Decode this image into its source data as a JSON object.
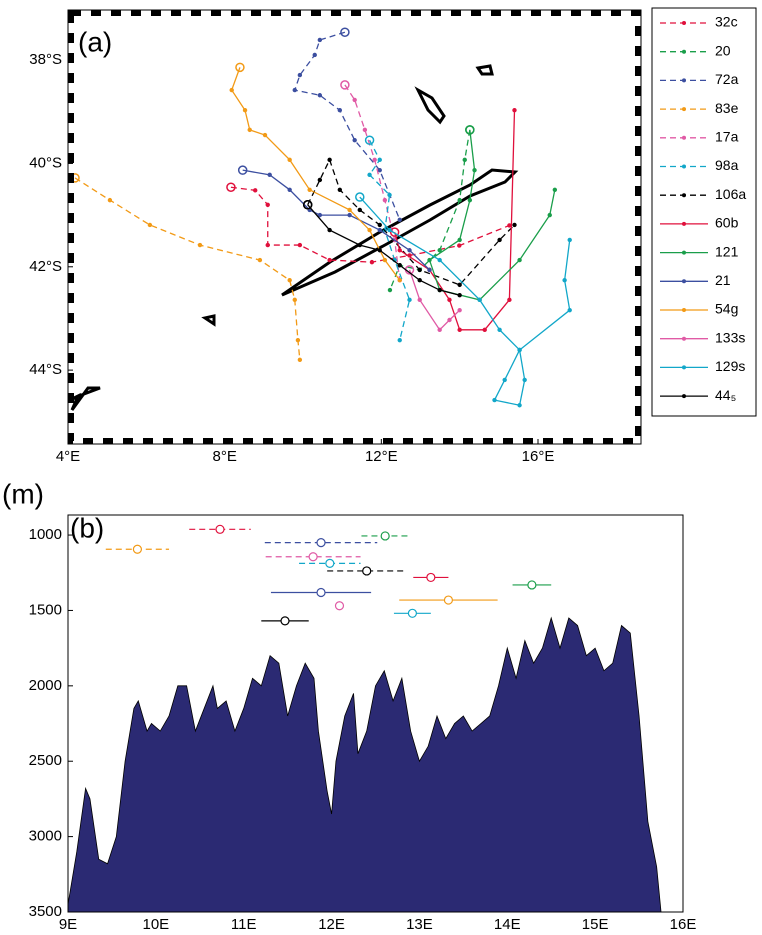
{
  "chart_data": [
    {
      "type": "line",
      "panel_label": "(a)",
      "xlim": [
        4,
        18.63
      ],
      "ylim": [
        -45.43,
        -37.03
      ],
      "xticks": [
        {
          "value": 4,
          "label": "4°E"
        },
        {
          "value": 8,
          "label": "8°E"
        },
        {
          "value": 12,
          "label": "12°E"
        },
        {
          "value": 16,
          "label": "16°E"
        }
      ],
      "yticks": [
        {
          "value": -38,
          "label": "38°S"
        },
        {
          "value": -40,
          "label": "40°S"
        },
        {
          "value": -42,
          "label": "42°S"
        },
        {
          "value": -44,
          "label": "44°S"
        }
      ],
      "series": [
        {
          "name": "32c",
          "color": "#e0103c",
          "dashed": true,
          "x": [
            8.16,
            8.78,
            9.1,
            9.1,
            9.92,
            10.68,
            11.76,
            12.72,
            13.99,
            15.27
          ],
          "values": [
            -40.46,
            -40.52,
            -40.8,
            -41.58,
            -41.58,
            -41.87,
            -41.91,
            -41.78,
            -41.59,
            -41.2
          ]
        },
        {
          "name": "20",
          "color": "#1a9e4a",
          "dashed": true,
          "x": [
            14.26,
            14.13,
            14.0,
            13.49,
            12.98,
            12.47,
            12.22
          ],
          "values": [
            -39.35,
            -39.93,
            -40.71,
            -41.68,
            -42.06,
            -41.97,
            -42.45
          ]
        },
        {
          "name": "72a",
          "color": "#3c4fa0",
          "dashed": true,
          "x": [
            11.07,
            10.43,
            10.3,
            9.92,
            9.79,
            10.43,
            10.94,
            11.32,
            11.96,
            12.47
          ],
          "values": [
            -37.46,
            -37.61,
            -37.9,
            -38.29,
            -38.58,
            -38.68,
            -38.97,
            -39.55,
            -40.13,
            -41.09
          ]
        },
        {
          "name": "83e",
          "color": "#f29a16",
          "dashed": true,
          "x": [
            4.18,
            5.07,
            6.09,
            7.37,
            8.9,
            9.66,
            9.79,
            9.87,
            9.92
          ],
          "values": [
            -40.28,
            -40.71,
            -41.19,
            -41.58,
            -41.87,
            -42.26,
            -42.64,
            -43.42,
            -43.8
          ]
        },
        {
          "name": "17a",
          "color": "#e05aa5",
          "dashed": true,
          "x": [
            11.07,
            11.32,
            11.58,
            11.83,
            12.09,
            12.34,
            12.47
          ],
          "values": [
            -38.48,
            -38.77,
            -39.35,
            -39.93,
            -40.71,
            -41.48,
            -42.26
          ]
        },
        {
          "name": "98a",
          "color": "#12a7c9",
          "dashed": true,
          "x": [
            11.7,
            11.96,
            11.7,
            12.21,
            12.09,
            12.34,
            12.72,
            12.47
          ],
          "values": [
            -39.55,
            -39.93,
            -40.22,
            -40.61,
            -41.29,
            -41.87,
            -42.64,
            -43.42
          ]
        },
        {
          "name": "106a",
          "color": "#000000",
          "dashed": true,
          "x": [
            10.12,
            10.43,
            10.68,
            10.94,
            11.45,
            11.96,
            12.98,
            14.0,
            15.02,
            15.4
          ],
          "values": [
            -40.8,
            -40.32,
            -39.93,
            -40.51,
            -40.9,
            -41.19,
            -42.06,
            -42.35,
            -41.48,
            -41.19
          ]
        },
        {
          "name": "60b",
          "color": "#e0103c",
          "dashed": false,
          "x": [
            12.34,
            12.47,
            13.23,
            13.74,
            14.0,
            14.64,
            15.27,
            15.4
          ],
          "values": [
            -41.33,
            -41.68,
            -42.06,
            -42.64,
            -43.22,
            -43.22,
            -42.64,
            -38.97
          ]
        },
        {
          "name": "121",
          "color": "#1a9e4a",
          "dashed": false,
          "x": [
            14.26,
            14.38,
            14.26,
            14.0,
            13.23,
            13.49,
            14.51,
            15.53,
            16.3,
            16.43
          ],
          "values": [
            -39.35,
            -40.13,
            -40.71,
            -41.48,
            -41.87,
            -42.45,
            -42.64,
            -41.87,
            -41.0,
            -40.51
          ]
        },
        {
          "name": "21",
          "color": "#3c4fa0",
          "dashed": false,
          "x": [
            8.46,
            9.15,
            9.66,
            10.17,
            10.43,
            11.19,
            11.96,
            12.72,
            13.23
          ],
          "values": [
            -40.13,
            -40.22,
            -40.51,
            -40.9,
            -41.0,
            -41.0,
            -41.29,
            -41.68,
            -42.06
          ]
        },
        {
          "name": "54g",
          "color": "#f29a16",
          "dashed": false,
          "x": [
            8.39,
            8.18,
            8.52,
            8.64,
            9.03,
            9.66,
            10.17,
            11.19,
            11.7,
            12.09,
            12.47
          ],
          "values": [
            -38.14,
            -38.58,
            -38.97,
            -39.35,
            -39.45,
            -39.93,
            -40.51,
            -40.9,
            -41.29,
            -41.87,
            -42.26
          ]
        },
        {
          "name": "133s",
          "color": "#e05aa5",
          "dashed": false,
          "x": [
            12.72,
            12.98,
            13.49,
            13.74,
            14.0
          ],
          "values": [
            -42.06,
            -42.64,
            -43.22,
            -43.03,
            -42.84
          ]
        },
        {
          "name": "129s",
          "color": "#12a7c9",
          "dashed": false,
          "x": [
            11.45,
            12.21,
            13.49,
            14.51,
            15.02,
            15.53,
            15.15,
            14.89,
            15.53,
            15.66,
            15.53,
            16.81,
            16.68,
            16.81
          ],
          "values": [
            -40.65,
            -41.29,
            -41.87,
            -42.64,
            -43.22,
            -43.61,
            -44.19,
            -44.58,
            -44.68,
            -44.19,
            -43.61,
            -42.84,
            -42.26,
            -41.48
          ]
        },
        {
          "name": "44₅",
          "color": "#000000",
          "dashed": false,
          "x": [
            10.12,
            10.68,
            11.45,
            11.96,
            12.47,
            12.98,
            13.49,
            14.0
          ],
          "values": [
            -40.8,
            -41.29,
            -41.58,
            -41.68,
            -41.97,
            -42.26,
            -42.45,
            -42.55
          ]
        }
      ]
    },
    {
      "type": "area",
      "panel_label": "(b)",
      "unit_label": "(m)",
      "xlim": [
        9,
        16
      ],
      "ylim": [
        3500,
        867
      ],
      "xticks": [
        {
          "value": 9,
          "label": "9E"
        },
        {
          "value": 10,
          "label": "10E"
        },
        {
          "value": 11,
          "label": "11E"
        },
        {
          "value": 12,
          "label": "12E"
        },
        {
          "value": 13,
          "label": "13E"
        },
        {
          "value": 14,
          "label": "14E"
        },
        {
          "value": 15,
          "label": "15E"
        },
        {
          "value": 16,
          "label": "16E"
        }
      ],
      "yticks": [
        1000,
        1500,
        2000,
        2500,
        3000,
        3500
      ],
      "area": {
        "color": "#2b2a73",
        "x": [
          9.0,
          9.1,
          9.2,
          9.25,
          9.35,
          9.45,
          9.55,
          9.65,
          9.75,
          9.8,
          9.85,
          9.9,
          9.95,
          10.05,
          10.15,
          10.25,
          10.35,
          10.45,
          10.55,
          10.65,
          10.7,
          10.8,
          10.9,
          11.0,
          11.1,
          11.2,
          11.3,
          11.4,
          11.5,
          11.6,
          11.7,
          11.8,
          11.85,
          11.95,
          12.0,
          12.05,
          12.15,
          12.25,
          12.3,
          12.4,
          12.5,
          12.6,
          12.7,
          12.8,
          12.9,
          13.0,
          13.1,
          13.2,
          13.3,
          13.4,
          13.5,
          13.6,
          13.7,
          13.8,
          13.9,
          14.0,
          14.1,
          14.2,
          14.3,
          14.4,
          14.5,
          14.6,
          14.7,
          14.8,
          14.9,
          15.0,
          15.1,
          15.2,
          15.3,
          15.4,
          15.5,
          15.6,
          15.7,
          15.75
        ],
        "values": [
          3450,
          3100,
          2680,
          2750,
          3150,
          3180,
          3000,
          2500,
          2150,
          2100,
          2200,
          2300,
          2250,
          2300,
          2200,
          2000,
          2000,
          2300,
          2150,
          2000,
          2150,
          2100,
          2300,
          2150,
          1950,
          2000,
          1800,
          1850,
          2200,
          2000,
          1850,
          1950,
          2300,
          2700,
          2850,
          2500,
          2200,
          2050,
          2450,
          2300,
          2000,
          1900,
          2100,
          1950,
          2300,
          2500,
          2400,
          2200,
          2350,
          2250,
          2200,
          2300,
          2250,
          2200,
          2000,
          1750,
          1950,
          1700,
          1850,
          1750,
          1550,
          1750,
          1550,
          1600,
          1800,
          1750,
          1900,
          1850,
          1600,
          1650,
          2200,
          2900,
          3200,
          3500
        ]
      },
      "series": [
        {
          "color": "#e0103c",
          "dashed": true,
          "x": [
            10.73
          ],
          "values": [
            962
          ],
          "xerr": [
            0.35
          ]
        },
        {
          "color": "#1a9e4a",
          "dashed": true,
          "x": [
            12.61
          ],
          "values": [
            1006
          ],
          "xerr": [
            0.27
          ]
        },
        {
          "color": "#3c4fa0",
          "dashed": true,
          "x": [
            11.88
          ],
          "values": [
            1050
          ],
          "xerr": [
            0.64
          ]
        },
        {
          "color": "#f29a16",
          "dashed": true,
          "x": [
            9.79
          ],
          "values": [
            1094
          ],
          "xerr": [
            0.36
          ]
        },
        {
          "color": "#e05aa5",
          "dashed": true,
          "x": [
            11.79
          ],
          "values": [
            1144
          ],
          "xerr": [
            0.54
          ]
        },
        {
          "color": "#12a7c9",
          "dashed": true,
          "x": [
            11.98
          ],
          "values": [
            1188
          ],
          "xerr": [
            0.35
          ]
        },
        {
          "color": "#000000",
          "dashed": true,
          "x": [
            12.4
          ],
          "values": [
            1238
          ],
          "xerr": [
            0.45
          ]
        },
        {
          "color": "#e0103c",
          "dashed": false,
          "x": [
            13.13
          ],
          "values": [
            1281
          ],
          "xerr": [
            0.2
          ]
        },
        {
          "color": "#1a9e4a",
          "dashed": false,
          "x": [
            14.28
          ],
          "values": [
            1331
          ],
          "xerr": [
            0.22
          ]
        },
        {
          "color": "#3c4fa0",
          "dashed": false,
          "x": [
            11.88
          ],
          "values": [
            1381
          ],
          "xerr": [
            0.57
          ]
        },
        {
          "color": "#f29a16",
          "dashed": false,
          "x": [
            13.33
          ],
          "values": [
            1431
          ],
          "xerr": [
            0.56
          ]
        },
        {
          "color": "#e05aa5",
          "dashed": false,
          "x": [
            12.09
          ],
          "values": [
            1469
          ],
          "xerr": [
            0
          ]
        },
        {
          "color": "#12a7c9",
          "dashed": false,
          "x": [
            12.92
          ],
          "values": [
            1519
          ],
          "xerr": [
            0.21
          ]
        },
        {
          "color": "#000000",
          "dashed": false,
          "x": [
            11.47
          ],
          "values": [
            1569
          ],
          "xerr": [
            0.27
          ]
        }
      ]
    }
  ]
}
